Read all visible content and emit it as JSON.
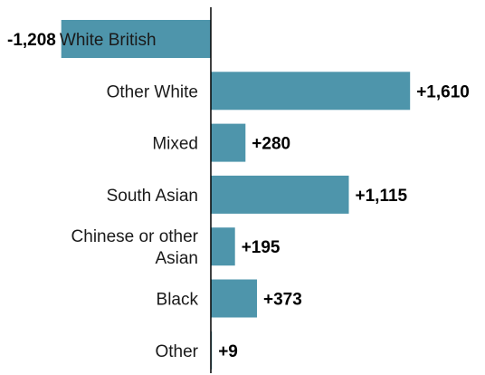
{
  "chart_data": {
    "type": "bar",
    "orientation": "horizontal",
    "categories": [
      "White British",
      "Other White",
      "Mixed",
      "South Asian",
      "Chinese or other Asian",
      "Black",
      "Other"
    ],
    "category_lines": [
      [
        "White British"
      ],
      [
        "Other White"
      ],
      [
        "Mixed"
      ],
      [
        "South Asian"
      ],
      [
        "Chinese or other",
        "Asian"
      ],
      [
        "Black"
      ],
      [
        "Other"
      ]
    ],
    "values": [
      -1208,
      1610,
      280,
      1115,
      195,
      373,
      9
    ],
    "value_labels": [
      "-1,208",
      "+1,610",
      "+280",
      "+1,115",
      "+195",
      "+373",
      "+9"
    ],
    "title": "",
    "xlabel": "",
    "ylabel": "",
    "xlim": [
      -1390,
      2350
    ],
    "grid": false,
    "legend": "none",
    "bar_color": "#4e95ab",
    "axis_color": "#000000"
  }
}
